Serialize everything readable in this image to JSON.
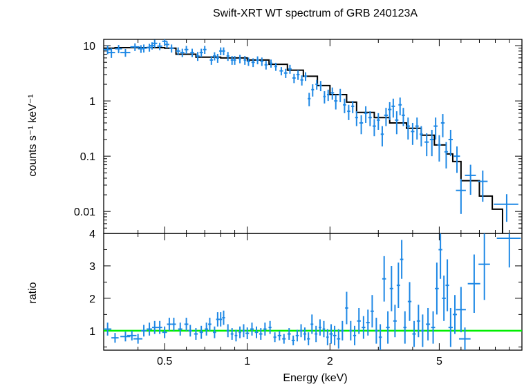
{
  "title": "Swift-XRT WT spectrum of GRB 240123A",
  "colors": {
    "data": "#1e88e5",
    "model": "#000000",
    "unity": "#00ee00",
    "frame": "#000000"
  },
  "chart_data": [
    {
      "type": "scatter",
      "panel": "spectrum",
      "ylabel": "counts s⁻¹ keV⁻¹",
      "xscale": "log",
      "yscale": "log",
      "xlim": [
        0.3,
        10
      ],
      "ylim": [
        0.004,
        13
      ],
      "yticks": [
        {
          "v": 10,
          "label": "10"
        },
        {
          "v": 1,
          "label": "1"
        },
        {
          "v": 0.1,
          "label": "0.1"
        },
        {
          "v": 0.01,
          "label": "0.01"
        }
      ],
      "model_step": [
        [
          0.3,
          9.0
        ],
        [
          0.33,
          9.2
        ],
        [
          0.5,
          9.0
        ],
        [
          0.55,
          7.0
        ],
        [
          0.65,
          6.2
        ],
        [
          0.8,
          6.0
        ],
        [
          1.0,
          5.5
        ],
        [
          1.2,
          4.6
        ],
        [
          1.4,
          3.6
        ],
        [
          1.6,
          2.8
        ],
        [
          1.8,
          1.9
        ],
        [
          2.0,
          1.3
        ],
        [
          2.3,
          0.95
        ],
        [
          2.5,
          0.62
        ],
        [
          2.9,
          0.5
        ],
        [
          3.3,
          0.4
        ],
        [
          3.8,
          0.32
        ],
        [
          4.3,
          0.24
        ],
        [
          4.8,
          0.16
        ],
        [
          5.3,
          0.11
        ],
        [
          5.6,
          0.08
        ],
        [
          6.0,
          0.036
        ],
        [
          7.0,
          0.019
        ],
        [
          7.8,
          0.011
        ],
        [
          8.5,
          0.003
        ]
      ],
      "points": [
        [
          0.31,
          8.5,
          0.01,
          1.5
        ],
        [
          0.32,
          7.5,
          0.01,
          1.5
        ],
        [
          0.34,
          8.8,
          0.01,
          1.5
        ],
        [
          0.36,
          7.5,
          0.015,
          1.2
        ],
        [
          0.39,
          9.5,
          0.015,
          1.5
        ],
        [
          0.41,
          8.8,
          0.01,
          1.4
        ],
        [
          0.42,
          9.0,
          0.01,
          1.5
        ],
        [
          0.44,
          9.3,
          0.01,
          1.5
        ],
        [
          0.45,
          10.0,
          0.01,
          1.5
        ],
        [
          0.46,
          11.0,
          0.01,
          1.8
        ],
        [
          0.48,
          9.8,
          0.01,
          1.5
        ],
        [
          0.5,
          12.0,
          0.01,
          1.8
        ],
        [
          0.51,
          10.5,
          0.01,
          1.5
        ],
        [
          0.53,
          9.0,
          0.01,
          1.5
        ],
        [
          0.56,
          8.0,
          0.01,
          1.3
        ],
        [
          0.58,
          7.5,
          0.01,
          1.3
        ],
        [
          0.6,
          8.5,
          0.01,
          1.4
        ],
        [
          0.63,
          7.5,
          0.01,
          1.3
        ],
        [
          0.66,
          6.5,
          0.01,
          1.2
        ],
        [
          0.68,
          7.5,
          0.01,
          1.3
        ],
        [
          0.7,
          8.5,
          0.01,
          1.4
        ],
        [
          0.74,
          5.5,
          0.01,
          1.0
        ],
        [
          0.76,
          6.5,
          0.01,
          1.1
        ],
        [
          0.78,
          6.0,
          0.01,
          1.1
        ],
        [
          0.8,
          8.0,
          0.01,
          1.3
        ],
        [
          0.82,
          8.0,
          0.01,
          1.3
        ],
        [
          0.85,
          6.5,
          0.01,
          1.2
        ],
        [
          0.88,
          5.5,
          0.01,
          1.0
        ],
        [
          0.9,
          5.5,
          0.01,
          1.0
        ],
        [
          0.94,
          5.8,
          0.01,
          1.0
        ],
        [
          0.98,
          5.5,
          0.01,
          1.0
        ],
        [
          1.01,
          5.2,
          0.015,
          0.9
        ],
        [
          1.05,
          5.0,
          0.015,
          0.9
        ],
        [
          1.09,
          5.5,
          0.015,
          0.9
        ],
        [
          1.13,
          5.2,
          0.015,
          0.9
        ],
        [
          1.17,
          4.5,
          0.015,
          0.8
        ],
        [
          1.22,
          4.8,
          0.015,
          0.8
        ],
        [
          1.27,
          4.2,
          0.015,
          0.7
        ],
        [
          1.33,
          3.5,
          0.02,
          0.6
        ],
        [
          1.38,
          3.2,
          0.02,
          0.6
        ],
        [
          1.43,
          3.8,
          0.02,
          0.7
        ],
        [
          1.48,
          2.6,
          0.02,
          0.5
        ],
        [
          1.53,
          3.0,
          0.02,
          0.6
        ],
        [
          1.58,
          2.4,
          0.02,
          0.5
        ],
        [
          1.63,
          2.8,
          0.02,
          0.5
        ],
        [
          1.68,
          1.1,
          0.02,
          0.3
        ],
        [
          1.73,
          1.6,
          0.02,
          0.4
        ],
        [
          1.79,
          2.0,
          0.02,
          0.4
        ],
        [
          1.85,
          1.9,
          0.02,
          0.4
        ],
        [
          1.91,
          1.2,
          0.02,
          0.3
        ],
        [
          1.97,
          1.3,
          0.02,
          0.3
        ],
        [
          2.04,
          1.4,
          0.03,
          0.35
        ],
        [
          2.1,
          1.0,
          0.03,
          0.3
        ],
        [
          2.18,
          1.3,
          0.03,
          0.35
        ],
        [
          2.26,
          0.85,
          0.03,
          0.25
        ],
        [
          2.34,
          0.65,
          0.03,
          0.2
        ],
        [
          2.42,
          0.8,
          0.03,
          0.2
        ],
        [
          2.5,
          0.5,
          0.03,
          0.15
        ],
        [
          2.6,
          0.4,
          0.04,
          0.15
        ],
        [
          2.7,
          0.6,
          0.04,
          0.2
        ],
        [
          2.8,
          0.5,
          0.04,
          0.15
        ],
        [
          2.9,
          0.35,
          0.04,
          0.12
        ],
        [
          3.0,
          0.45,
          0.04,
          0.15
        ],
        [
          3.1,
          0.25,
          0.04,
          0.1
        ],
        [
          3.2,
          0.55,
          0.05,
          0.2
        ],
        [
          3.3,
          0.7,
          0.05,
          0.25
        ],
        [
          3.4,
          0.8,
          0.05,
          0.3
        ],
        [
          3.5,
          0.45,
          0.05,
          0.2
        ],
        [
          3.6,
          0.85,
          0.05,
          0.3
        ],
        [
          3.7,
          0.55,
          0.05,
          0.2
        ],
        [
          3.85,
          0.35,
          0.06,
          0.15
        ],
        [
          4.0,
          0.28,
          0.06,
          0.12
        ],
        [
          4.15,
          0.35,
          0.06,
          0.15
        ],
        [
          4.3,
          0.25,
          0.06,
          0.1
        ],
        [
          4.5,
          0.18,
          0.08,
          0.08
        ],
        [
          4.7,
          0.2,
          0.08,
          0.1
        ],
        [
          4.85,
          0.35,
          0.08,
          0.15
        ],
        [
          5.0,
          0.16,
          0.08,
          0.08
        ],
        [
          5.15,
          0.4,
          0.08,
          0.18
        ],
        [
          5.3,
          0.12,
          0.08,
          0.06
        ],
        [
          5.5,
          0.2,
          0.1,
          0.1
        ],
        [
          5.8,
          0.1,
          0.15,
          0.05
        ],
        [
          6.0,
          0.024,
          0.25,
          0.015
        ],
        [
          6.5,
          0.045,
          0.3,
          0.025
        ],
        [
          7.2,
          0.035,
          0.3,
          0.02
        ],
        [
          8.8,
          0.0135,
          0.9,
          0.007
        ]
      ]
    },
    {
      "type": "scatter",
      "panel": "ratio",
      "xlabel": "Energy (keV)",
      "ylabel": "ratio",
      "xscale": "log",
      "xlim": [
        0.3,
        10
      ],
      "ylim": [
        0.4,
        4
      ],
      "xticks": [
        {
          "v": 0.5,
          "label": "0.5"
        },
        {
          "v": 1,
          "label": "1"
        },
        {
          "v": 2,
          "label": "2"
        },
        {
          "v": 5,
          "label": "5"
        }
      ],
      "yticks": [
        {
          "v": 1,
          "label": "1"
        },
        {
          "v": 2,
          "label": "2"
        },
        {
          "v": 3,
          "label": "3"
        },
        {
          "v": 4,
          "label": "4"
        }
      ],
      "unity_line": 1,
      "points": [
        [
          0.31,
          1.05,
          0.01,
          0.2
        ],
        [
          0.33,
          0.78,
          0.01,
          0.15
        ],
        [
          0.36,
          0.82,
          0.015,
          0.15
        ],
        [
          0.38,
          0.85,
          0.015,
          0.15
        ],
        [
          0.4,
          0.75,
          0.015,
          0.15
        ],
        [
          0.42,
          1.0,
          0.01,
          0.18
        ],
        [
          0.44,
          1.05,
          0.01,
          0.2
        ],
        [
          0.46,
          1.1,
          0.01,
          0.2
        ],
        [
          0.48,
          1.1,
          0.01,
          0.2
        ],
        [
          0.5,
          0.95,
          0.01,
          0.18
        ],
        [
          0.52,
          1.2,
          0.01,
          0.2
        ],
        [
          0.54,
          1.2,
          0.01,
          0.2
        ],
        [
          0.57,
          1.05,
          0.01,
          0.2
        ],
        [
          0.6,
          1.2,
          0.01,
          0.2
        ],
        [
          0.62,
          1.0,
          0.01,
          0.18
        ],
        [
          0.65,
          0.9,
          0.01,
          0.18
        ],
        [
          0.68,
          0.95,
          0.01,
          0.2
        ],
        [
          0.71,
          1.05,
          0.01,
          0.2
        ],
        [
          0.73,
          1.2,
          0.01,
          0.2
        ],
        [
          0.76,
          0.95,
          0.01,
          0.18
        ],
        [
          0.78,
          1.35,
          0.01,
          0.22
        ],
        [
          0.8,
          1.35,
          0.01,
          0.22
        ],
        [
          0.82,
          1.4,
          0.01,
          0.22
        ],
        [
          0.85,
          1.0,
          0.01,
          0.2
        ],
        [
          0.88,
          0.9,
          0.01,
          0.18
        ],
        [
          0.91,
          0.85,
          0.01,
          0.18
        ],
        [
          0.94,
          0.95,
          0.01,
          0.18
        ],
        [
          0.97,
          1.0,
          0.01,
          0.2
        ],
        [
          1.0,
          0.92,
          0.015,
          0.18
        ],
        [
          1.04,
          1.05,
          0.015,
          0.2
        ],
        [
          1.08,
          0.95,
          0.015,
          0.18
        ],
        [
          1.12,
          0.9,
          0.015,
          0.18
        ],
        [
          1.16,
          1.05,
          0.015,
          0.2
        ],
        [
          1.21,
          1.1,
          0.015,
          0.2
        ],
        [
          1.26,
          0.8,
          0.015,
          0.15
        ],
        [
          1.31,
          0.85,
          0.02,
          0.15
        ],
        [
          1.36,
          0.75,
          0.02,
          0.15
        ],
        [
          1.42,
          0.9,
          0.02,
          0.18
        ],
        [
          1.47,
          0.7,
          0.02,
          0.15
        ],
        [
          1.52,
          0.85,
          0.02,
          0.18
        ],
        [
          1.57,
          1.0,
          0.02,
          0.2
        ],
        [
          1.62,
          0.9,
          0.02,
          0.2
        ],
        [
          1.67,
          0.75,
          0.02,
          0.2
        ],
        [
          1.72,
          1.2,
          0.02,
          0.3
        ],
        [
          1.78,
          0.9,
          0.02,
          0.25
        ],
        [
          1.84,
          1.1,
          0.02,
          0.25
        ],
        [
          1.9,
          1.05,
          0.02,
          0.25
        ],
        [
          1.96,
          0.8,
          0.02,
          0.25
        ],
        [
          2.02,
          0.9,
          0.03,
          0.3
        ],
        [
          2.08,
          0.85,
          0.03,
          0.3
        ],
        [
          2.15,
          0.75,
          0.03,
          0.3
        ],
        [
          2.22,
          1.0,
          0.03,
          0.3
        ],
        [
          2.3,
          1.7,
          0.03,
          0.5
        ],
        [
          2.38,
          1.0,
          0.03,
          0.3
        ],
        [
          2.46,
          0.85,
          0.03,
          0.3
        ],
        [
          2.55,
          1.3,
          0.04,
          0.4
        ],
        [
          2.65,
          1.1,
          0.04,
          0.35
        ],
        [
          2.75,
          1.25,
          0.04,
          0.4
        ],
        [
          2.85,
          1.6,
          0.04,
          0.5
        ],
        [
          2.95,
          1.0,
          0.04,
          0.4
        ],
        [
          3.05,
          0.8,
          0.04,
          0.4
        ],
        [
          3.15,
          2.6,
          0.05,
          0.7
        ],
        [
          3.25,
          1.1,
          0.05,
          0.5
        ],
        [
          3.35,
          2.3,
          0.05,
          0.7
        ],
        [
          3.45,
          1.3,
          0.05,
          0.5
        ],
        [
          3.55,
          2.4,
          0.05,
          0.7
        ],
        [
          3.65,
          3.2,
          0.05,
          0.6
        ],
        [
          3.75,
          1.1,
          0.05,
          0.5
        ],
        [
          3.9,
          1.9,
          0.06,
          0.6
        ],
        [
          4.05,
          0.9,
          0.06,
          0.4
        ],
        [
          4.2,
          1.3,
          0.06,
          0.5
        ],
        [
          4.35,
          1.0,
          0.06,
          0.5
        ],
        [
          4.55,
          1.2,
          0.08,
          0.5
        ],
        [
          4.75,
          1.1,
          0.08,
          0.5
        ],
        [
          4.9,
          2.3,
          0.08,
          0.8
        ],
        [
          5.05,
          3.5,
          0.08,
          0.9
        ],
        [
          5.2,
          2.0,
          0.08,
          0.7
        ],
        [
          5.35,
          2.4,
          0.08,
          0.8
        ],
        [
          5.5,
          1.1,
          0.1,
          0.6
        ],
        [
          5.7,
          1.5,
          0.1,
          0.6
        ],
        [
          6.0,
          1.65,
          0.25,
          0.7
        ],
        [
          6.2,
          0.75,
          0.3,
          0.35
        ],
        [
          6.7,
          2.45,
          0.35,
          0.9
        ],
        [
          7.3,
          3.05,
          0.35,
          1.1
        ],
        [
          9.0,
          3.85,
          0.9,
          0.9
        ]
      ]
    }
  ]
}
